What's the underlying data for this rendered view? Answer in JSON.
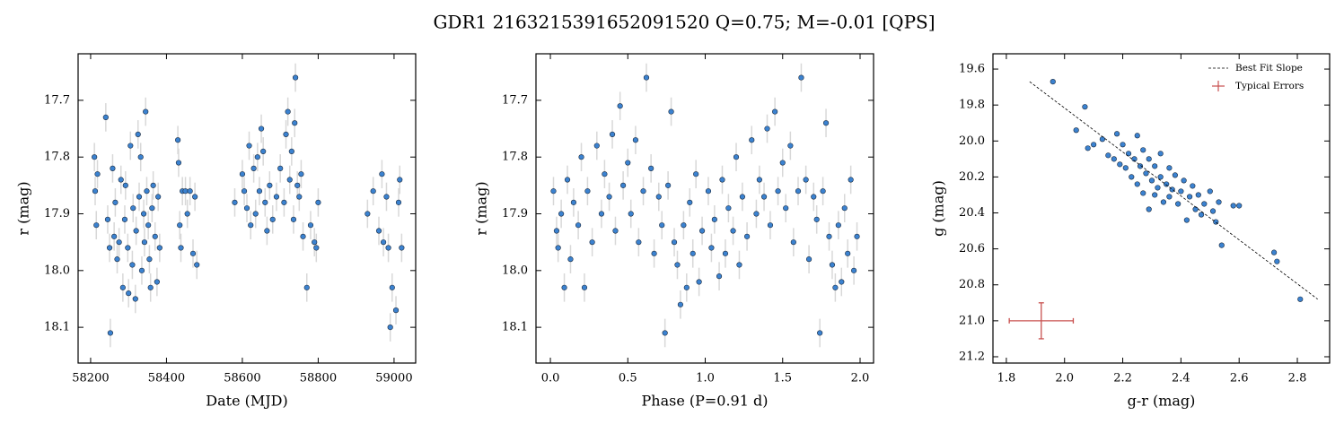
{
  "title": "GDR1 2163215391652091520  Q=0.75; M=-0.01 [QPS]",
  "chart_data": [
    {
      "type": "scatter",
      "xlabel": "Date (MJD)",
      "ylabel": "r (mag)",
      "xlim": [
        58167,
        59057
      ],
      "ylim": [
        17.618,
        18.163
      ],
      "y_inverted": true,
      "xticks": [
        58200,
        58400,
        58600,
        58800,
        59000
      ],
      "yticks": [
        17.7,
        17.8,
        17.9,
        {
          "value": 18.0,
          "label": "18.0"
        },
        18.1
      ],
      "series": [
        {
          "color": "#3b82d0",
          "yerr": 0.025,
          "x": [
            58210,
            58212,
            58215,
            58218,
            58240,
            58245,
            58250,
            58252,
            58258,
            58262,
            58265,
            58270,
            58275,
            58280,
            58285,
            58290,
            58292,
            58298,
            58300,
            58305,
            58310,
            58312,
            58318,
            58320,
            58325,
            58328,
            58332,
            58335,
            58340,
            58342,
            58345,
            58348,
            58352,
            58355,
            58358,
            58362,
            58365,
            58370,
            58375,
            58378,
            58382,
            58430,
            58432,
            58435,
            58438,
            58442,
            58450,
            58455,
            58462,
            58470,
            58475,
            58480,
            58580,
            58600,
            58605,
            58612,
            58618,
            58622,
            58630,
            58635,
            58640,
            58645,
            58650,
            58655,
            58660,
            58665,
            58672,
            58680,
            58690,
            58700,
            58710,
            58715,
            58720,
            58725,
            58730,
            58735,
            58738,
            58740,
            58745,
            58750,
            58755,
            58760,
            58770,
            58780,
            58790,
            58795,
            58800,
            58930,
            58945,
            58960,
            58968,
            58972,
            58980,
            58985,
            58990,
            58995,
            59005,
            59012,
            59015,
            59020
          ],
          "values": [
            17.8,
            17.86,
            17.92,
            17.83,
            17.73,
            17.91,
            17.96,
            18.11,
            17.82,
            17.94,
            17.88,
            17.98,
            17.95,
            17.84,
            18.03,
            17.91,
            17.85,
            17.96,
            18.04,
            17.78,
            17.99,
            17.89,
            18.05,
            17.93,
            17.76,
            17.87,
            17.8,
            18.0,
            17.9,
            17.95,
            17.72,
            17.86,
            17.92,
            17.98,
            18.03,
            17.89,
            17.85,
            17.94,
            18.02,
            17.87,
            17.96,
            17.77,
            17.81,
            17.92,
            17.96,
            17.86,
            17.86,
            17.9,
            17.86,
            17.97,
            17.87,
            17.99,
            17.88,
            17.83,
            17.86,
            17.89,
            17.78,
            17.92,
            17.82,
            17.9,
            17.8,
            17.86,
            17.75,
            17.79,
            17.88,
            17.93,
            17.85,
            17.91,
            17.87,
            17.82,
            17.88,
            17.76,
            17.72,
            17.84,
            17.79,
            17.91,
            17.74,
            17.66,
            17.85,
            17.87,
            17.83,
            17.94,
            18.03,
            17.92,
            17.95,
            17.96,
            17.88,
            17.9,
            17.86,
            17.93,
            17.83,
            17.95,
            17.87,
            17.96,
            18.1,
            18.03,
            18.07,
            17.88,
            17.84,
            17.96
          ]
        }
      ]
    },
    {
      "type": "scatter",
      "xlabel": "Phase (P=0.91 d)",
      "ylabel": "r (mag)",
      "xlim": [
        -0.093,
        2.087
      ],
      "ylim": [
        17.618,
        18.163
      ],
      "y_inverted": true,
      "xticks": [
        {
          "value": 0,
          "label": "0.0"
        },
        0.5,
        {
          "value": 1,
          "label": "1.0"
        },
        1.5,
        {
          "value": 2,
          "label": "2.0"
        }
      ],
      "yticks": [
        17.7,
        17.8,
        17.9,
        {
          "value": 18.0,
          "label": "18.0"
        },
        18.1
      ],
      "series": [
        {
          "color": "#3b82d0",
          "yerr": 0.025,
          "x": [
            0.02,
            0.04,
            0.05,
            0.07,
            0.09,
            0.11,
            0.13,
            0.15,
            0.18,
            0.2,
            0.22,
            0.24,
            0.27,
            0.3,
            0.33,
            0.35,
            0.38,
            0.4,
            0.42,
            0.45,
            0.47,
            0.5,
            0.52,
            0.55,
            0.57,
            0.6,
            0.62,
            0.65,
            0.67,
            0.7,
            0.72,
            0.74,
            0.76,
            0.78,
            0.8,
            0.82,
            0.84,
            0.86,
            0.88,
            0.9,
            0.92,
            0.94,
            0.96,
            0.98,
            1.02,
            1.04,
            1.06,
            1.09,
            1.11,
            1.13,
            1.15,
            1.18,
            1.2,
            1.22,
            1.24,
            1.27,
            1.3,
            1.33,
            1.35,
            1.38,
            1.4,
            1.42,
            1.45,
            1.47,
            1.5,
            1.52,
            1.55,
            1.57,
            1.6,
            1.62,
            1.65,
            1.67,
            1.7,
            1.72,
            1.74,
            1.76,
            1.78,
            1.8,
            1.82,
            1.84,
            1.86,
            1.88,
            1.9,
            1.92,
            1.94,
            1.96,
            1.98
          ],
          "values": [
            17.86,
            17.93,
            17.96,
            17.9,
            18.03,
            17.84,
            17.98,
            17.88,
            17.92,
            17.8,
            18.03,
            17.86,
            17.95,
            17.78,
            17.9,
            17.83,
            17.87,
            17.76,
            17.93,
            17.71,
            17.85,
            17.81,
            17.9,
            17.77,
            17.95,
            17.86,
            17.66,
            17.82,
            17.97,
            17.87,
            17.92,
            18.11,
            17.85,
            17.72,
            17.95,
            17.99,
            18.06,
            17.92,
            18.03,
            17.88,
            17.97,
            17.83,
            18.02,
            17.93,
            17.86,
            17.96,
            17.91,
            18.01,
            17.84,
            17.97,
            17.89,
            17.93,
            17.8,
            17.99,
            17.87,
            17.94,
            17.77,
            17.9,
            17.84,
            17.87,
            17.75,
            17.92,
            17.72,
            17.86,
            17.81,
            17.89,
            17.78,
            17.95,
            17.86,
            17.66,
            17.84,
            17.98,
            17.87,
            17.91,
            18.11,
            17.86,
            17.74,
            17.94,
            17.99,
            18.03,
            17.92,
            18.02,
            17.89,
            17.97,
            17.84,
            18.0,
            17.94
          ]
        }
      ]
    },
    {
      "type": "scatter",
      "xlabel": "g-r (mag)",
      "ylabel": "g (mag)",
      "xlim": [
        1.754,
        2.911
      ],
      "ylim": [
        19.515,
        21.235
      ],
      "y_inverted": true,
      "legend": "upper right",
      "xticks": [
        1.8,
        {
          "value": 2,
          "label": "2.0"
        },
        2.2,
        2.4,
        2.6,
        2.8
      ],
      "yticks": [
        19.6,
        19.8,
        {
          "value": 20,
          "label": "20.0"
        },
        20.2,
        20.4,
        20.6,
        20.8,
        {
          "value": 21,
          "label": "21.0"
        },
        21.2
      ],
      "series": [
        {
          "color": "#3b82d0",
          "x": [
            1.96,
            2.04,
            2.07,
            2.08,
            2.1,
            2.13,
            2.15,
            2.17,
            2.18,
            2.19,
            2.2,
            2.21,
            2.22,
            2.23,
            2.24,
            2.25,
            2.25,
            2.26,
            2.27,
            2.27,
            2.28,
            2.29,
            2.29,
            2.3,
            2.31,
            2.31,
            2.32,
            2.33,
            2.33,
            2.34,
            2.35,
            2.36,
            2.36,
            2.37,
            2.38,
            2.39,
            2.4,
            2.41,
            2.42,
            2.43,
            2.44,
            2.45,
            2.46,
            2.47,
            2.48,
            2.5,
            2.51,
            2.52,
            2.53,
            2.54,
            2.58,
            2.6,
            2.72,
            2.73,
            2.81
          ],
          "values": [
            19.67,
            19.94,
            19.81,
            20.04,
            20.02,
            19.99,
            20.08,
            20.1,
            19.96,
            20.13,
            20.02,
            20.15,
            20.07,
            20.2,
            20.1,
            19.97,
            20.24,
            20.14,
            20.05,
            20.29,
            20.18,
            20.1,
            20.38,
            20.22,
            20.14,
            20.3,
            20.26,
            20.07,
            20.2,
            20.34,
            20.24,
            20.15,
            20.31,
            20.27,
            20.19,
            20.35,
            20.28,
            20.22,
            20.44,
            20.31,
            20.25,
            20.38,
            20.3,
            20.41,
            20.35,
            20.28,
            20.39,
            20.45,
            20.34,
            20.58,
            20.36,
            20.36,
            20.62,
            20.67,
            20.88
          ]
        }
      ],
      "fit": {
        "name": "Best Fit Slope",
        "color": "#000000",
        "x": [
          1.88,
          2.87
        ],
        "values": [
          19.67,
          20.88
        ]
      },
      "typical_errors": {
        "name": "Typical Errors",
        "color": "#c8504f",
        "x": 1.92,
        "value": 21.0,
        "xerr": 0.11,
        "yerr": 0.1
      }
    }
  ]
}
